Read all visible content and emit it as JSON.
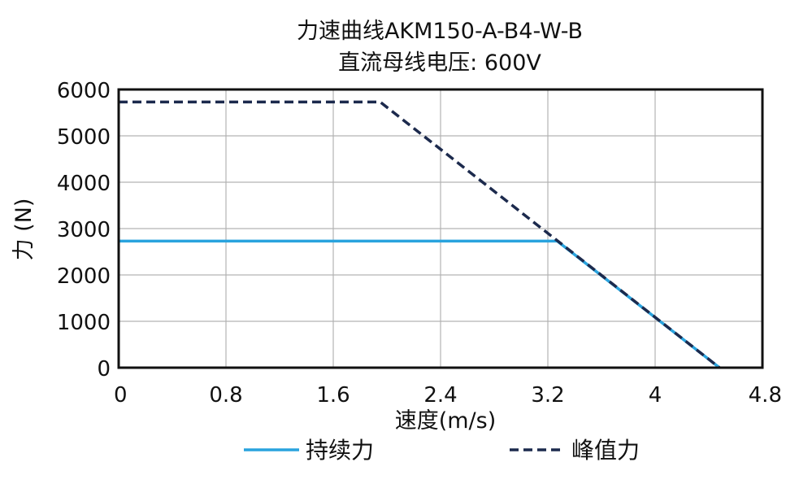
{
  "chart_data": {
    "type": "line",
    "title": "力速曲线AKM150-A-B4-W-B",
    "subtitle": "直流母线电压: 600V",
    "xlabel": "速度(m/s)",
    "ylabel": "力 (N)",
    "xlim": [
      0,
      4.8
    ],
    "ylim": [
      0,
      6000
    ],
    "xticks": [
      "0",
      "0.8",
      "1.6",
      "2.4",
      "3.2",
      "4",
      "4.8"
    ],
    "yticks": [
      "0",
      "1000",
      "2000",
      "3000",
      "4000",
      "5000",
      "6000"
    ],
    "grid": true,
    "legend_position": "bottom",
    "series": [
      {
        "name": "持续力",
        "color": "#29a3de",
        "style": "solid",
        "points": [
          [
            0,
            2730
          ],
          [
            3.27,
            2730
          ],
          [
            4.48,
            0
          ]
        ]
      },
      {
        "name": "峰值力",
        "color": "#1c2a4d",
        "style": "dashed",
        "points": [
          [
            0,
            5730
          ],
          [
            1.95,
            5730
          ],
          [
            4.48,
            0
          ]
        ]
      }
    ]
  }
}
